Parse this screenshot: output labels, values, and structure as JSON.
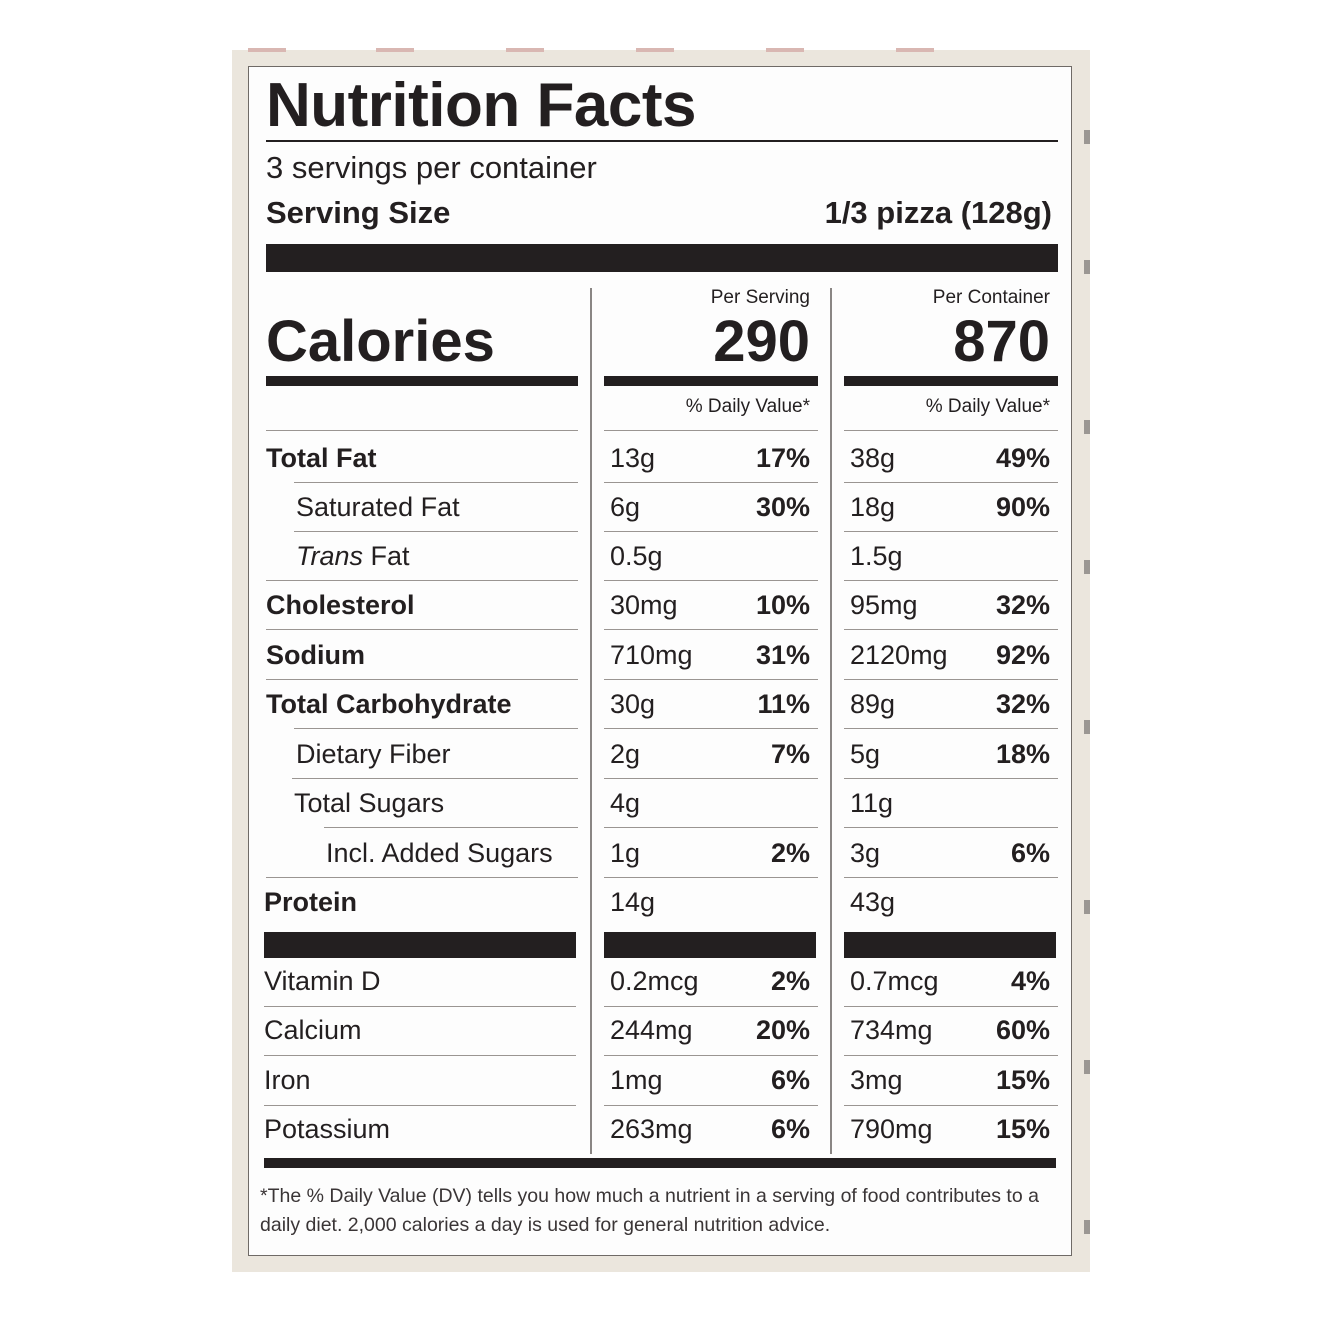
{
  "title": "Nutrition Facts",
  "servings_per_container": "3 servings per container",
  "serving_size_label": "Serving Size",
  "serving_size_value": "1/3 pizza (128g)",
  "per_serving_label": "Per Serving",
  "per_container_label": "Per Container",
  "calories_label": "Calories",
  "calories_per_serving": "290",
  "calories_per_container": "870",
  "dv_header": "% Daily Value*",
  "nutrients": [
    {
      "name": "Total Fat",
      "amt1": "13g",
      "pct1": "17%",
      "amt2": "38g",
      "pct2": "49%"
    },
    {
      "name": "Saturated Fat",
      "amt1": "6g",
      "pct1": "30%",
      "amt2": "18g",
      "pct2": "90%"
    },
    {
      "name_italic": "Trans",
      "name_rest": " Fat",
      "amt1": "0.5g",
      "pct1": "",
      "amt2": "1.5g",
      "pct2": ""
    },
    {
      "name": "Cholesterol",
      "amt1": "30mg",
      "pct1": "10%",
      "amt2": "95mg",
      "pct2": "32%"
    },
    {
      "name": "Sodium",
      "amt1": "710mg",
      "pct1": "31%",
      "amt2": "2120mg",
      "pct2": "92%"
    },
    {
      "name": "Total Carbohydrate",
      "amt1": "30g",
      "pct1": "11%",
      "amt2": "89g",
      "pct2": "32%"
    },
    {
      "name": "Dietary Fiber",
      "amt1": "2g",
      "pct1": "7%",
      "amt2": "5g",
      "pct2": "18%"
    },
    {
      "name": "Total Sugars",
      "amt1": "4g",
      "pct1": "",
      "amt2": "11g",
      "pct2": ""
    },
    {
      "name": "Incl. Added Sugars",
      "amt1": "1g",
      "pct1": "2%",
      "amt2": "3g",
      "pct2": "6%"
    },
    {
      "name": "Protein",
      "amt1": "14g",
      "pct1": "",
      "amt2": "43g",
      "pct2": ""
    }
  ],
  "vitamins": [
    {
      "name": "Vitamin D",
      "amt1": "0.2mcg",
      "pct1": "2%",
      "amt2": "0.7mcg",
      "pct2": "4%"
    },
    {
      "name": "Calcium",
      "amt1": "244mg",
      "pct1": "20%",
      "amt2": "734mg",
      "pct2": "60%"
    },
    {
      "name": "Iron",
      "amt1": "1mg",
      "pct1": "6%",
      "amt2": "3mg",
      "pct2": "15%"
    },
    {
      "name": "Potassium",
      "amt1": "263mg",
      "pct1": "6%",
      "amt2": "790mg",
      "pct2": "15%"
    }
  ],
  "footnote": "*The % Daily Value (DV) tells you how much a nutrient in a serving of food contributes to a daily diet. 2,000 calories a day is used for general nutrition advice."
}
